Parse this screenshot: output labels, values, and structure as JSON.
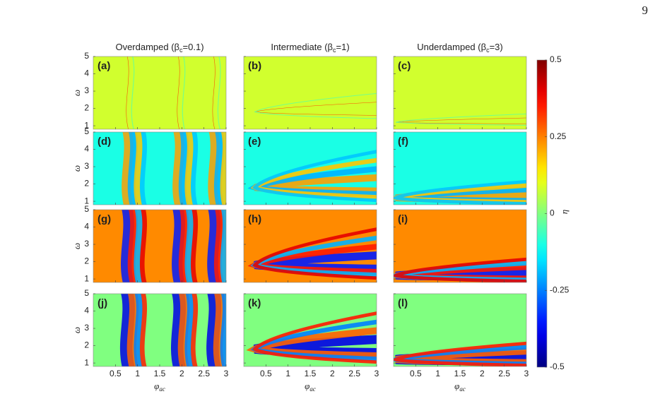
{
  "page_number": "9",
  "figure": {
    "columns": [
      {
        "pre": "Overdamped (β",
        "sub": "c",
        "post": "=0.1)"
      },
      {
        "pre": "Intermediate (β",
        "sub": "c",
        "post": "=1)"
      },
      {
        "pre": "Underdamped (β",
        "sub": "c",
        "post": "=3)"
      }
    ],
    "panels": [
      "(a)",
      "(b)",
      "(c)",
      "(d)",
      "(e)",
      "(f)",
      "(g)",
      "(h)",
      "(i)",
      "(j)",
      "(k)",
      "(l)"
    ],
    "ylabel": "ω",
    "xlabel": {
      "base": "φ",
      "sub": "ac"
    },
    "xlim": [
      0,
      3
    ],
    "xticks": [
      0.5,
      1,
      1.5,
      2,
      2.5,
      3
    ],
    "ylim": [
      0.8,
      5
    ],
    "yticks": [
      1,
      2,
      3,
      4,
      5
    ],
    "colorbar": {
      "lim": [
        -0.5,
        0.5
      ],
      "ticks": [
        0.5,
        0.25,
        0,
        -0.25,
        -0.5
      ],
      "label": "η"
    }
  }
}
